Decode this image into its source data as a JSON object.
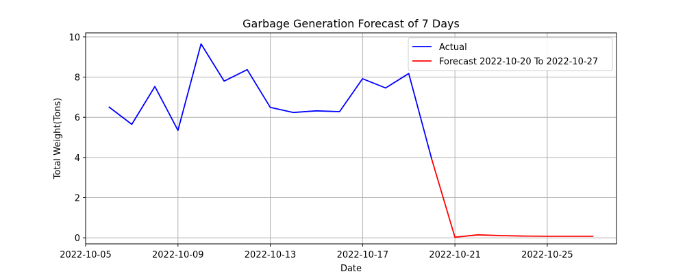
{
  "chart_data": {
    "type": "line",
    "title": "Garbage Generation Forecast of 7 Days",
    "xlabel": "Date",
    "ylabel": "Total Weight(Tons)",
    "xlim": [
      "2022-10-05",
      "2022-10-28"
    ],
    "ylim": [
      -0.3,
      10.2
    ],
    "x_ticks": [
      "2022-10-05",
      "2022-10-09",
      "2022-10-13",
      "2022-10-17",
      "2022-10-21",
      "2022-10-25"
    ],
    "y_ticks": [
      0,
      2,
      4,
      6,
      8,
      10
    ],
    "grid": true,
    "legend_position": "top-right",
    "series": [
      {
        "name": "Actual",
        "color": "#0000ff",
        "x": [
          "2022-10-06",
          "2022-10-07",
          "2022-10-08",
          "2022-10-09",
          "2022-10-10",
          "2022-10-11",
          "2022-10-12",
          "2022-10-13",
          "2022-10-14",
          "2022-10-15",
          "2022-10-16",
          "2022-10-17",
          "2022-10-18",
          "2022-10-19",
          "2022-10-20"
        ],
        "values": [
          6.52,
          5.65,
          7.53,
          5.35,
          9.65,
          7.8,
          8.37,
          6.49,
          6.24,
          6.32,
          6.28,
          7.92,
          7.46,
          8.18,
          3.9
        ]
      },
      {
        "name": "Forecast 2022-10-20 To 2022-10-27",
        "color": "#ff0000",
        "x": [
          "2022-10-20",
          "2022-10-21",
          "2022-10-22",
          "2022-10-23",
          "2022-10-24",
          "2022-10-25",
          "2022-10-26",
          "2022-10-27"
        ],
        "values": [
          3.9,
          0.03,
          0.15,
          0.11,
          0.09,
          0.08,
          0.08,
          0.08
        ]
      }
    ]
  }
}
